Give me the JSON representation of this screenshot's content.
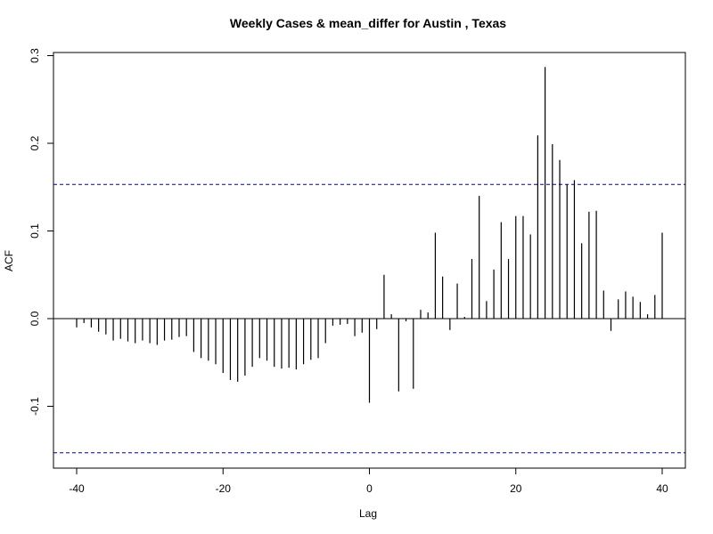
{
  "chart_data": {
    "type": "bar",
    "title": "Weekly Cases & mean_differ for Austin , Texas",
    "xlabel": "Lag",
    "ylabel": "ACF",
    "xlim": [
      -40,
      40
    ],
    "ylim": [
      -0.16,
      0.3
    ],
    "x_ticks": [
      -40,
      -20,
      0,
      20,
      40
    ],
    "y_ticks": [
      -0.1,
      0.0,
      0.1,
      0.2,
      0.3
    ],
    "x_tick_labels": [
      "-40",
      "-20",
      "0",
      "20",
      "40"
    ],
    "y_tick_labels": [
      "-0.1",
      "0.0",
      "0.1",
      "0.2",
      "0.3"
    ],
    "confidence_bound": 0.153,
    "lags": [
      -40,
      -39,
      -38,
      -37,
      -36,
      -35,
      -34,
      -33,
      -32,
      -31,
      -30,
      -29,
      -28,
      -27,
      -26,
      -25,
      -24,
      -23,
      -22,
      -21,
      -20,
      -19,
      -18,
      -17,
      -16,
      -15,
      -14,
      -13,
      -12,
      -11,
      -10,
      -9,
      -8,
      -7,
      -6,
      -5,
      -4,
      -3,
      -2,
      -1,
      0,
      1,
      2,
      3,
      4,
      5,
      6,
      7,
      8,
      9,
      10,
      11,
      12,
      13,
      14,
      15,
      16,
      17,
      18,
      19,
      20,
      21,
      22,
      23,
      24,
      25,
      26,
      27,
      28,
      29,
      30,
      31,
      32,
      33,
      34,
      35,
      36,
      37,
      38,
      39,
      40
    ],
    "acf": [
      -0.01,
      -0.005,
      -0.01,
      -0.015,
      -0.018,
      -0.025,
      -0.023,
      -0.026,
      -0.028,
      -0.025,
      -0.028,
      -0.03,
      -0.025,
      -0.024,
      -0.021,
      -0.02,
      -0.038,
      -0.045,
      -0.048,
      -0.052,
      -0.062,
      -0.07,
      -0.072,
      -0.065,
      -0.055,
      -0.045,
      -0.048,
      -0.055,
      -0.057,
      -0.056,
      -0.058,
      -0.052,
      -0.047,
      -0.045,
      -0.028,
      -0.008,
      -0.007,
      -0.006,
      -0.02,
      -0.016,
      -0.096,
      -0.012,
      0.05,
      0.005,
      -0.083,
      -0.003,
      -0.08,
      0.01,
      0.007,
      0.098,
      0.048,
      -0.013,
      0.04,
      0.002,
      0.068,
      0.14,
      0.02,
      0.056,
      0.11,
      0.068,
      0.117,
      0.117,
      0.096,
      0.209,
      0.287,
      0.199,
      0.181,
      0.153,
      0.158,
      0.086,
      0.122,
      0.123,
      0.032,
      -0.014,
      0.022,
      0.031,
      0.025,
      0.019,
      0.005,
      0.027,
      0.098
    ],
    "grid": false,
    "colors": {
      "bars": "#000000",
      "confidence_lines": "#00008B",
      "zero_line": "#000000"
    }
  }
}
